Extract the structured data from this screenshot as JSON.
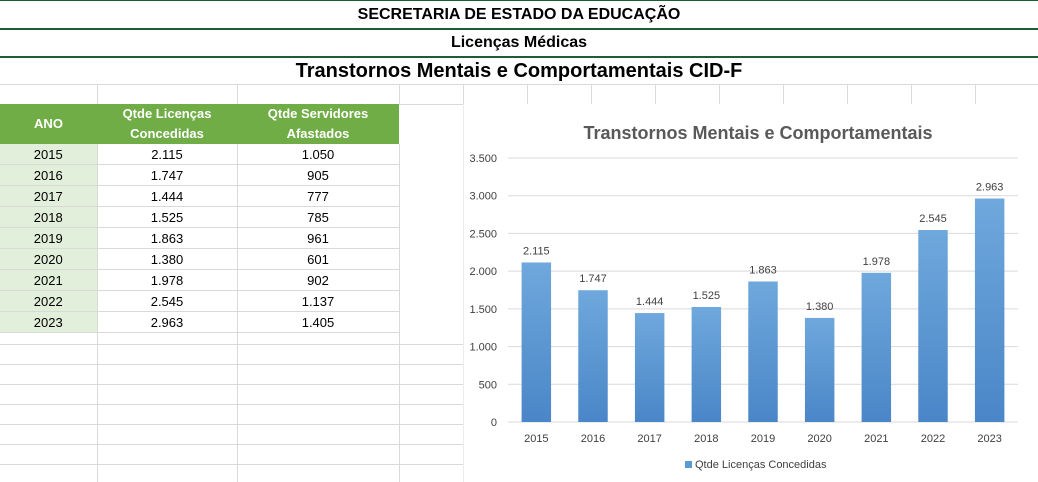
{
  "header": {
    "line1": "SECRETARIA DE ESTADO DA EDUCAÇÃO",
    "line2": "Licenças Médicas",
    "line3": "Transtornos Mentais e Comportamentais CID-F"
  },
  "table": {
    "columns": [
      "ANO",
      "Qtde Licenças Concedidas",
      "Qtde Servidores Afastados"
    ],
    "rows": [
      [
        "2015",
        "2.115",
        "1.050"
      ],
      [
        "2016",
        "1.747",
        "905"
      ],
      [
        "2017",
        "1.444",
        "777"
      ],
      [
        "2018",
        "1.525",
        "785"
      ],
      [
        "2019",
        "1.863",
        "961"
      ],
      [
        "2020",
        "1.380",
        "601"
      ],
      [
        "2021",
        "1.978",
        "902"
      ],
      [
        "2022",
        "2.545",
        "1.137"
      ],
      [
        "2023",
        "2.963",
        "1.405"
      ]
    ]
  },
  "colors": {
    "header_green": "#70ad47",
    "year_fill": "#e2efda",
    "bar": "#5b9bd5",
    "rule": "#1f5c34"
  },
  "chart_data": {
    "type": "bar",
    "title": "Transtornos Mentais e Comportamentais",
    "categories": [
      "2015",
      "2016",
      "2017",
      "2018",
      "2019",
      "2020",
      "2021",
      "2022",
      "2023"
    ],
    "series": [
      {
        "name": "Qtde Licenças Concedidas",
        "values": [
          2115,
          1747,
          1444,
          1525,
          1863,
          1380,
          1978,
          2545,
          2963
        ]
      }
    ],
    "data_labels": [
      "2.115",
      "1.747",
      "1.444",
      "1.525",
      "1.863",
      "1.380",
      "1.978",
      "2.545",
      "2.963"
    ],
    "ylim": [
      0,
      3500
    ],
    "yticks": [
      0,
      500,
      1000,
      1500,
      2000,
      2500,
      3000,
      3500
    ],
    "ytick_labels": [
      "0",
      "500",
      "1.000",
      "1.500",
      "2.000",
      "2.500",
      "3.000",
      "3.500"
    ],
    "grid": true,
    "legend": "bottom"
  }
}
